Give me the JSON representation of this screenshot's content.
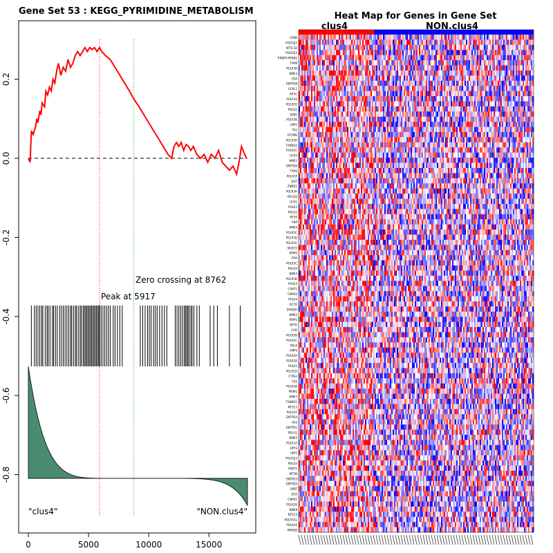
{
  "chart_data": [
    {
      "type": "line",
      "title": "Gene Set  53 : KEGG_PYRIMIDINE_METABOLISM",
      "xlabel": "",
      "ylabel": "",
      "xlim": [
        0,
        18200
      ],
      "ylim": [
        -0.9,
        0.32
      ],
      "x_ticks": [
        0,
        5000,
        10000,
        15000
      ],
      "y_ticks": [
        0.2,
        0.0,
        -0.2,
        -0.4,
        -0.6,
        -0.8
      ],
      "enrichment_score": {
        "x": [
          0,
          150,
          250,
          400,
          600,
          700,
          800,
          950,
          1050,
          1150,
          1350,
          1450,
          1600,
          1750,
          1900,
          2050,
          2200,
          2350,
          2500,
          2700,
          2900,
          3100,
          3300,
          3500,
          3700,
          3900,
          4100,
          4300,
          4500,
          4700,
          4900,
          5100,
          5300,
          5500,
          5700,
          5917,
          6100,
          6400,
          6800,
          7200,
          7600,
          8000,
          8400,
          8762,
          9200,
          9600,
          10000,
          10400,
          10800,
          11200,
          11600,
          11900,
          12100,
          12300,
          12500,
          12700,
          12900,
          13100,
          13300,
          13500,
          13700,
          14000,
          14300,
          14600,
          14900,
          15200,
          15500,
          15800,
          16100,
          16400,
          16700,
          17000,
          17300,
          17500,
          17700,
          18100
        ],
        "y": [
          0.0,
          -0.01,
          0.07,
          0.06,
          0.08,
          0.1,
          0.09,
          0.12,
          0.11,
          0.14,
          0.13,
          0.17,
          0.16,
          0.18,
          0.17,
          0.2,
          0.19,
          0.22,
          0.24,
          0.21,
          0.23,
          0.22,
          0.25,
          0.23,
          0.24,
          0.26,
          0.27,
          0.26,
          0.27,
          0.28,
          0.27,
          0.28,
          0.275,
          0.28,
          0.27,
          0.28,
          0.27,
          0.26,
          0.25,
          0.23,
          0.21,
          0.19,
          0.17,
          0.15,
          0.13,
          0.11,
          0.09,
          0.07,
          0.05,
          0.03,
          0.01,
          0.0,
          0.03,
          0.04,
          0.03,
          0.04,
          0.02,
          0.035,
          0.03,
          0.02,
          0.03,
          0.01,
          0.0,
          0.01,
          -0.01,
          0.01,
          0.0,
          0.02,
          -0.01,
          -0.02,
          -0.03,
          -0.02,
          -0.04,
          -0.01,
          0.03,
          0.0
        ]
      },
      "hit_positions": [
        250,
        500,
        650,
        800,
        950,
        1100,
        1200,
        1400,
        1550,
        1650,
        1800,
        2000,
        2100,
        2250,
        2400,
        2600,
        2750,
        2900,
        3050,
        3200,
        3350,
        3500,
        3600,
        3750,
        3900,
        4000,
        4150,
        4300,
        4400,
        4550,
        4650,
        4750,
        4850,
        4950,
        5050,
        5150,
        5250,
        5350,
        5450,
        5550,
        5650,
        5750,
        5850,
        5917,
        6050,
        6200,
        6350,
        6500,
        6650,
        6800,
        7050,
        7200,
        7400,
        7600,
        7800,
        9300,
        9500,
        9700,
        9900,
        10050,
        10200,
        10400,
        10550,
        10700,
        10900,
        11100,
        11300,
        11500,
        12200,
        12350,
        12500,
        12650,
        12800,
        12950,
        13050,
        13150,
        13250,
        13350,
        13500,
        13600,
        13750,
        14000,
        14200,
        15100,
        15400,
        15700,
        16700,
        17600
      ],
      "peak": {
        "x": 5917,
        "label": "Peak at 5917"
      },
      "zero_crossing": {
        "x": 8762,
        "label": "Zero crossing at 8762"
      },
      "group_labels": [
        "\"clus4\"",
        "\"NON.clus4\""
      ],
      "colors": {
        "es_line": "#ff0000",
        "peak_line": "#ff0000",
        "zero_line": "#00aa00",
        "ranked_metric": "#4a8c70",
        "hits": "#000000"
      }
    },
    {
      "type": "heatmap",
      "title": "Heat Map for Genes in Gene Set",
      "groups": [
        {
          "name": "clus4",
          "color": "#ff0000",
          "fraction": 0.32
        },
        {
          "name": "NON.clus4",
          "color": "#0000ff",
          "fraction": 0.68
        }
      ],
      "row_labels": [
        "CEBB",
        "POLR2J2",
        "NT5C1B",
        "POLR2J3",
        "RRBBT-RRBB2",
        "TYMP",
        "POLR3B",
        "NME3",
        "CDA",
        "ENTPD8",
        "UCKL1",
        "NT5C",
        "POLR3E",
        "POLR2G",
        "POLD1",
        "UPB1",
        "POLR3K",
        "UPP1",
        "TK1",
        "DTYMK",
        "POLR3H",
        "TXNRD2",
        "POLR1C",
        "UCK2",
        "NME1",
        "ENTPD6",
        "TYMS",
        "POLR3F",
        "DUT",
        "ZNRD1",
        "POLR3H",
        "POLR2J",
        "UCK1",
        "POLE2",
        "POLD2",
        "NT5E",
        "PNP",
        "NME6",
        "POLR3C",
        "POLR3D",
        "POLR3G",
        "NUDT2",
        "RRM2",
        "ITPA",
        "POLR3C",
        "POLD4",
        "NME4",
        "POLR3D",
        "POLE3",
        "CANT1",
        "CMPK2",
        "POLE4",
        "DCTD",
        "DHODH",
        "NME2",
        "RRM1",
        "DPYD",
        "CAD",
        "POLR3B",
        "POLR2C",
        "POLE",
        "UMPS",
        "POLR2A",
        "POLR1B",
        "POLE1",
        "POLR1D",
        "CTPS2",
        "TK2",
        "POLR2B",
        "PRIM1",
        "NME7",
        "TXNRD1",
        "NT5C2",
        "POLR2F",
        "ENTPD4",
        "AK3",
        "ENTPD1",
        "POLA1",
        "NME5",
        "POLR1A",
        "DPYS",
        "UPP2",
        "POLR2J3",
        "POLD3",
        "PNPT1",
        "NT5M",
        "ENTPD3",
        "ENTPD5",
        "UPRT",
        "DCK",
        "CMPK1",
        "POLR2K",
        "NME8",
        "NT5C3",
        "POLR3GL",
        "POLR2E",
        "RRM2B"
      ],
      "colors": {
        "low": "#0000ff",
        "mid": "#ffffff",
        "high": "#ff0000"
      }
    }
  ]
}
